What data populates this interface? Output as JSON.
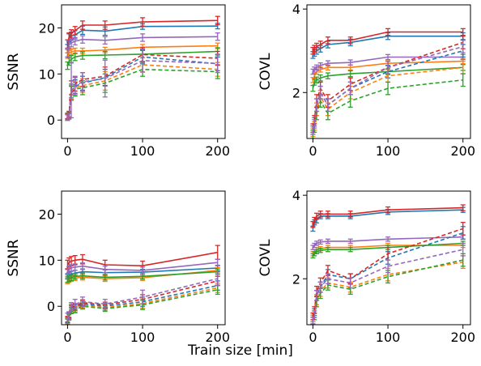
{
  "figure": {
    "xlabel": "Train size [min]"
  },
  "chart_data": [
    {
      "type": "line",
      "ylabel": "SSNR",
      "xlim": [
        -8,
        210
      ],
      "ylim": [
        -4,
        25
      ],
      "xticks": [
        "0",
        "100",
        "200"
      ],
      "yticks": [
        "0",
        "10",
        "20"
      ],
      "x": [
        0,
        2,
        5,
        10,
        20,
        50,
        100,
        200
      ],
      "series": [
        {
          "color": "#1f77b4",
          "style": "solid",
          "values": [
            15.5,
            17.8,
            18.2,
            18.5,
            19.5,
            19.3,
            20.3,
            20.4
          ],
          "err": [
            0.9,
            0.9,
            0.9,
            0.9,
            0.9,
            0.9,
            0.6,
            0.6
          ]
        },
        {
          "color": "#ff7f0e",
          "style": "solid",
          "values": [
            14.0,
            14.5,
            14.8,
            15.0,
            15.0,
            15.2,
            15.8,
            16.1
          ],
          "err": [
            0.6,
            0.6,
            0.6,
            0.6,
            0.6,
            0.6,
            0.6,
            0.6
          ]
        },
        {
          "color": "#2ca02c",
          "style": "solid",
          "values": [
            11.8,
            12.7,
            13.2,
            13.7,
            14.0,
            14.1,
            14.3,
            14.9
          ],
          "err": [
            0.8,
            0.8,
            0.8,
            0.8,
            0.8,
            0.8,
            0.8,
            0.8
          ]
        },
        {
          "color": "#d62728",
          "style": "solid",
          "values": [
            16.5,
            18.0,
            18.7,
            19.4,
            20.6,
            20.6,
            21.3,
            21.6
          ],
          "err": [
            0.9,
            0.9,
            0.9,
            0.9,
            0.9,
            0.9,
            0.9,
            0.9
          ]
        },
        {
          "color": "#9467bd",
          "style": "solid",
          "values": [
            14.5,
            16.4,
            16.7,
            17.1,
            17.5,
            17.3,
            17.9,
            18.1
          ],
          "err": [
            0.8,
            0.8,
            0.8,
            0.8,
            0.8,
            0.8,
            0.8,
            0.8
          ]
        },
        {
          "color": "#1f77b4",
          "style": "dashed",
          "values": [
            0.8,
            1.2,
            6.3,
            7.3,
            8.0,
            9.2,
            13.7,
            12.2
          ],
          "err": [
            0.6,
            0.6,
            1.5,
            1.5,
            1.5,
            1.8,
            1.5,
            1.5
          ]
        },
        {
          "color": "#ff7f0e",
          "style": "dashed",
          "values": [
            0.7,
            1.0,
            6.0,
            7.0,
            7.5,
            8.5,
            12.0,
            11.0
          ],
          "err": [
            0.6,
            0.6,
            1.5,
            1.5,
            1.5,
            2.0,
            1.5,
            1.5
          ]
        },
        {
          "color": "#2ca02c",
          "style": "dashed",
          "values": [
            0.6,
            0.9,
            5.8,
            6.7,
            7.0,
            8.0,
            11.0,
            10.5
          ],
          "err": [
            0.6,
            0.6,
            1.5,
            1.5,
            1.5,
            2.0,
            1.5,
            1.5
          ]
        },
        {
          "color": "#d62728",
          "style": "dashed",
          "values": [
            0.9,
            1.3,
            7.0,
            7.8,
            8.8,
            9.5,
            14.2,
            13.4
          ],
          "err": [
            0.6,
            0.6,
            1.5,
            1.5,
            1.5,
            2.0,
            1.5,
            1.5
          ]
        },
        {
          "color": "#9467bd",
          "style": "dashed",
          "values": [
            0.5,
            0.8,
            6.5,
            7.5,
            8.3,
            9.0,
            12.9,
            12.3
          ],
          "err": [
            0.6,
            0.6,
            6.0,
            2.0,
            2.0,
            4.0,
            2.5,
            2.0
          ]
        }
      ]
    },
    {
      "type": "line",
      "ylabel": "COVL",
      "xlim": [
        -8,
        210
      ],
      "ylim": [
        0.9,
        4.1
      ],
      "xticks": [
        "0",
        "100",
        "200"
      ],
      "yticks": [
        "2",
        "4"
      ],
      "x": [
        0,
        2,
        5,
        10,
        20,
        50,
        100,
        200
      ],
      "series": [
        {
          "color": "#1f77b4",
          "style": "solid",
          "values": [
            2.9,
            2.95,
            3.0,
            3.05,
            3.15,
            3.2,
            3.35,
            3.35
          ],
          "err": [
            0.08,
            0.08,
            0.08,
            0.08,
            0.08,
            0.08,
            0.08,
            0.08
          ]
        },
        {
          "color": "#ff7f0e",
          "style": "solid",
          "values": [
            2.3,
            2.4,
            2.5,
            2.55,
            2.6,
            2.6,
            2.7,
            2.75
          ],
          "err": [
            0.06,
            0.06,
            0.06,
            0.06,
            0.06,
            0.06,
            0.06,
            0.06
          ]
        },
        {
          "color": "#2ca02c",
          "style": "solid",
          "values": [
            2.1,
            2.25,
            2.3,
            2.35,
            2.4,
            2.45,
            2.5,
            2.6
          ],
          "err": [
            0.07,
            0.07,
            0.07,
            0.07,
            0.07,
            0.07,
            0.07,
            0.07
          ]
        },
        {
          "color": "#d62728",
          "style": "solid",
          "values": [
            3.0,
            3.05,
            3.1,
            3.15,
            3.25,
            3.25,
            3.45,
            3.45
          ],
          "err": [
            0.08,
            0.08,
            0.08,
            0.08,
            0.08,
            0.08,
            0.08,
            0.08
          ]
        },
        {
          "color": "#9467bd",
          "style": "solid",
          "values": [
            2.5,
            2.55,
            2.6,
            2.65,
            2.7,
            2.72,
            2.85,
            2.85
          ],
          "err": [
            0.06,
            0.06,
            0.06,
            0.06,
            0.06,
            0.06,
            0.06,
            0.06
          ]
        },
        {
          "color": "#1f77b4",
          "style": "dashed",
          "values": [
            1.1,
            1.3,
            1.7,
            2.0,
            1.7,
            2.1,
            2.5,
            3.0
          ],
          "err": [
            0.1,
            0.1,
            0.15,
            0.15,
            0.15,
            0.15,
            0.15,
            0.15
          ]
        },
        {
          "color": "#ff7f0e",
          "style": "dashed",
          "values": [
            1.05,
            1.2,
            1.6,
            1.9,
            1.6,
            2.0,
            2.4,
            2.6
          ],
          "err": [
            0.1,
            0.1,
            0.15,
            0.15,
            0.15,
            0.15,
            0.15,
            0.15
          ]
        },
        {
          "color": "#2ca02c",
          "style": "dashed",
          "values": [
            1.0,
            1.15,
            1.5,
            1.8,
            1.5,
            1.8,
            2.1,
            2.3
          ],
          "err": [
            0.1,
            0.1,
            0.15,
            0.15,
            0.15,
            0.15,
            0.15,
            0.15
          ]
        },
        {
          "color": "#d62728",
          "style": "dashed",
          "values": [
            1.15,
            1.35,
            1.8,
            2.1,
            1.8,
            2.2,
            2.6,
            3.2
          ],
          "err": [
            0.1,
            0.1,
            0.15,
            0.15,
            0.15,
            0.15,
            0.15,
            0.15
          ]
        },
        {
          "color": "#9467bd",
          "style": "dashed",
          "values": [
            1.1,
            1.25,
            1.7,
            2.0,
            1.7,
            2.1,
            2.6,
            3.1
          ],
          "err": [
            0.1,
            0.1,
            0.15,
            0.15,
            0.15,
            0.15,
            0.15,
            0.15
          ]
        }
      ]
    },
    {
      "type": "line",
      "ylabel": "SSNR",
      "xlim": [
        -8,
        210
      ],
      "ylim": [
        -4,
        25
      ],
      "xticks": [
        "0",
        "100",
        "200"
      ],
      "yticks": [
        "0",
        "10",
        "20"
      ],
      "x": [
        0,
        2,
        5,
        10,
        20,
        50,
        100,
        200
      ],
      "series": [
        {
          "color": "#1f77b4",
          "style": "solid",
          "values": [
            6.5,
            6.8,
            7.0,
            7.2,
            7.5,
            7.3,
            7.4,
            8.3
          ],
          "err": [
            0.6,
            0.6,
            0.6,
            0.6,
            0.6,
            0.6,
            0.6,
            0.6
          ]
        },
        {
          "color": "#ff7f0e",
          "style": "solid",
          "values": [
            5.5,
            5.8,
            6.0,
            6.2,
            6.3,
            6.0,
            6.2,
            7.8
          ],
          "err": [
            0.6,
            0.6,
            0.6,
            0.6,
            0.6,
            0.6,
            0.6,
            0.6
          ]
        },
        {
          "color": "#2ca02c",
          "style": "solid",
          "values": [
            5.8,
            6.0,
            6.2,
            6.5,
            6.6,
            6.3,
            6.5,
            7.5
          ],
          "err": [
            0.6,
            0.6,
            0.6,
            0.6,
            0.6,
            0.6,
            0.6,
            0.6
          ]
        },
        {
          "color": "#d62728",
          "style": "solid",
          "values": [
            9.0,
            9.5,
            9.8,
            10.0,
            10.2,
            9.0,
            8.8,
            11.7
          ],
          "err": [
            1.0,
            1.0,
            1.0,
            1.0,
            1.0,
            1.0,
            1.0,
            1.5
          ]
        },
        {
          "color": "#9467bd",
          "style": "solid",
          "values": [
            7.5,
            8.0,
            8.3,
            8.5,
            8.7,
            8.0,
            7.8,
            9.5
          ],
          "err": [
            0.7,
            0.7,
            0.7,
            0.7,
            0.7,
            0.7,
            0.7,
            0.7
          ]
        },
        {
          "color": "#1f77b4",
          "style": "dashed",
          "values": [
            -3.0,
            -2.0,
            -0.5,
            -0.3,
            0.5,
            0.0,
            1.0,
            4.5
          ],
          "err": [
            0.6,
            0.6,
            0.6,
            0.6,
            0.6,
            0.6,
            1.0,
            1.0
          ]
        },
        {
          "color": "#ff7f0e",
          "style": "dashed",
          "values": [
            -3.2,
            -2.2,
            -0.8,
            -0.6,
            0.2,
            -0.3,
            0.6,
            4.0
          ],
          "err": [
            0.6,
            0.6,
            0.6,
            0.6,
            0.6,
            0.6,
            1.0,
            1.0
          ]
        },
        {
          "color": "#2ca02c",
          "style": "dashed",
          "values": [
            -3.4,
            -2.4,
            -1.0,
            -0.8,
            0.0,
            -0.5,
            0.3,
            3.6
          ],
          "err": [
            0.6,
            0.6,
            0.6,
            0.6,
            0.6,
            0.6,
            1.0,
            1.0
          ]
        },
        {
          "color": "#d62728",
          "style": "dashed",
          "values": [
            -2.8,
            -1.8,
            -0.2,
            0.0,
            0.8,
            0.3,
            1.5,
            5.5
          ],
          "err": [
            0.6,
            0.6,
            0.6,
            0.6,
            0.6,
            0.6,
            1.0,
            1.0
          ]
        },
        {
          "color": "#9467bd",
          "style": "dashed",
          "values": [
            -3.0,
            -2.0,
            0.0,
            0.5,
            1.0,
            0.5,
            2.0,
            6.0
          ],
          "err": [
            1.5,
            0.8,
            0.8,
            1.0,
            1.0,
            1.0,
            1.5,
            1.5
          ]
        }
      ]
    },
    {
      "type": "line",
      "ylabel": "COVL",
      "xlim": [
        -8,
        210
      ],
      "ylim": [
        0.9,
        4.1
      ],
      "xticks": [
        "0",
        "100",
        "200"
      ],
      "yticks": [
        "2",
        "4"
      ],
      "x": [
        0,
        2,
        5,
        10,
        20,
        50,
        100,
        200
      ],
      "series": [
        {
          "color": "#1f77b4",
          "style": "solid",
          "values": [
            3.2,
            3.35,
            3.4,
            3.5,
            3.5,
            3.5,
            3.6,
            3.65
          ],
          "err": [
            0.06,
            0.06,
            0.06,
            0.06,
            0.06,
            0.06,
            0.06,
            0.06
          ]
        },
        {
          "color": "#ff7f0e",
          "style": "solid",
          "values": [
            2.6,
            2.65,
            2.7,
            2.72,
            2.75,
            2.75,
            2.8,
            2.8
          ],
          "err": [
            0.05,
            0.05,
            0.05,
            0.05,
            0.05,
            0.05,
            0.05,
            0.05
          ]
        },
        {
          "color": "#2ca02c",
          "style": "solid",
          "values": [
            2.55,
            2.6,
            2.65,
            2.68,
            2.7,
            2.7,
            2.75,
            2.85
          ],
          "err": [
            0.05,
            0.05,
            0.05,
            0.05,
            0.05,
            0.05,
            0.05,
            0.05
          ]
        },
        {
          "color": "#d62728",
          "style": "solid",
          "values": [
            3.3,
            3.4,
            3.5,
            3.55,
            3.55,
            3.55,
            3.65,
            3.7
          ],
          "err": [
            0.07,
            0.07,
            0.07,
            0.07,
            0.07,
            0.07,
            0.07,
            0.07
          ]
        },
        {
          "color": "#9467bd",
          "style": "solid",
          "values": [
            2.75,
            2.8,
            2.85,
            2.88,
            2.9,
            2.9,
            2.95,
            3.0
          ],
          "err": [
            0.05,
            0.05,
            0.05,
            0.05,
            0.05,
            0.05,
            0.05,
            0.05
          ]
        },
        {
          "color": "#1f77b4",
          "style": "dashed",
          "values": [
            1.05,
            1.2,
            1.6,
            1.8,
            2.1,
            2.0,
            2.5,
            3.1
          ],
          "err": [
            0.08,
            0.08,
            0.12,
            0.12,
            0.12,
            0.12,
            0.15,
            0.15
          ]
        },
        {
          "color": "#ff7f0e",
          "style": "dashed",
          "values": [
            1.05,
            1.15,
            1.5,
            1.7,
            1.9,
            1.8,
            2.1,
            2.4
          ],
          "err": [
            0.08,
            0.08,
            0.12,
            0.12,
            0.12,
            0.12,
            0.15,
            0.15
          ]
        },
        {
          "color": "#2ca02c",
          "style": "dashed",
          "values": [
            1.0,
            1.1,
            1.45,
            1.65,
            1.85,
            1.75,
            2.05,
            2.45
          ],
          "err": [
            0.08,
            0.08,
            0.12,
            0.12,
            0.12,
            0.12,
            0.15,
            0.15
          ]
        },
        {
          "color": "#d62728",
          "style": "dashed",
          "values": [
            1.1,
            1.25,
            1.7,
            1.9,
            2.2,
            2.0,
            2.6,
            3.2
          ],
          "err": [
            0.08,
            0.08,
            0.12,
            0.12,
            0.12,
            0.12,
            0.15,
            0.15
          ]
        },
        {
          "color": "#9467bd",
          "style": "dashed",
          "values": [
            1.0,
            1.15,
            1.6,
            1.8,
            2.0,
            1.9,
            2.3,
            2.7
          ],
          "err": [
            0.08,
            0.08,
            0.12,
            0.12,
            0.12,
            0.12,
            0.15,
            0.15
          ]
        }
      ]
    }
  ]
}
